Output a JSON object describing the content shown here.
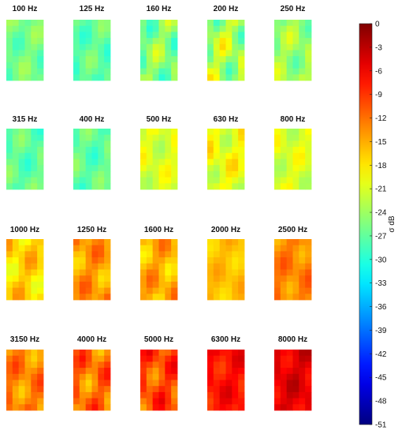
{
  "chart_data": {
    "type": "heatmap",
    "title": "",
    "colorbar": {
      "label": "σ dB",
      "range": [
        -51,
        0
      ],
      "ticks": [
        "0",
        "-3",
        "-6",
        "-9",
        "-12",
        "-15",
        "-18",
        "-21",
        "-24",
        "-27",
        "-30",
        "-33",
        "-36",
        "-39",
        "-42",
        "-45",
        "-48",
        "-51"
      ],
      "colormap": "jet"
    },
    "panels": [
      {
        "label": "100 Hz",
        "mean_db": -26,
        "variation_db": 3
      },
      {
        "label": "125 Hz",
        "mean_db": -27,
        "variation_db": 3
      },
      {
        "label": "160 Hz",
        "mean_db": -25,
        "variation_db": 5
      },
      {
        "label": "200 Hz",
        "mean_db": -23,
        "variation_db": 6
      },
      {
        "label": "250 Hz",
        "mean_db": -24,
        "variation_db": 4
      },
      {
        "label": "315 Hz",
        "mean_db": -27,
        "variation_db": 3
      },
      {
        "label": "400 Hz",
        "mean_db": -27,
        "variation_db": 3
      },
      {
        "label": "500 Hz",
        "mean_db": -21,
        "variation_db": 3
      },
      {
        "label": "630 Hz",
        "mean_db": -20,
        "variation_db": 4
      },
      {
        "label": "800 Hz",
        "mean_db": -21,
        "variation_db": 3
      },
      {
        "label": "1000 Hz",
        "mean_db": -17,
        "variation_db": 4
      },
      {
        "label": "1250 Hz",
        "mean_db": -14,
        "variation_db": 4
      },
      {
        "label": "1600 Hz",
        "mean_db": -15,
        "variation_db": 4
      },
      {
        "label": "2000 Hz",
        "mean_db": -16,
        "variation_db": 2
      },
      {
        "label": "2500 Hz",
        "mean_db": -13,
        "variation_db": 3
      },
      {
        "label": "3150 Hz",
        "mean_db": -13,
        "variation_db": 4
      },
      {
        "label": "4000 Hz",
        "mean_db": -12,
        "variation_db": 5
      },
      {
        "label": "5000 Hz",
        "mean_db": -10,
        "variation_db": 5
      },
      {
        "label": "6300 Hz",
        "mean_db": -7,
        "variation_db": 3
      },
      {
        "label": "8000 Hz",
        "mean_db": -5,
        "variation_db": 3
      }
    ]
  }
}
